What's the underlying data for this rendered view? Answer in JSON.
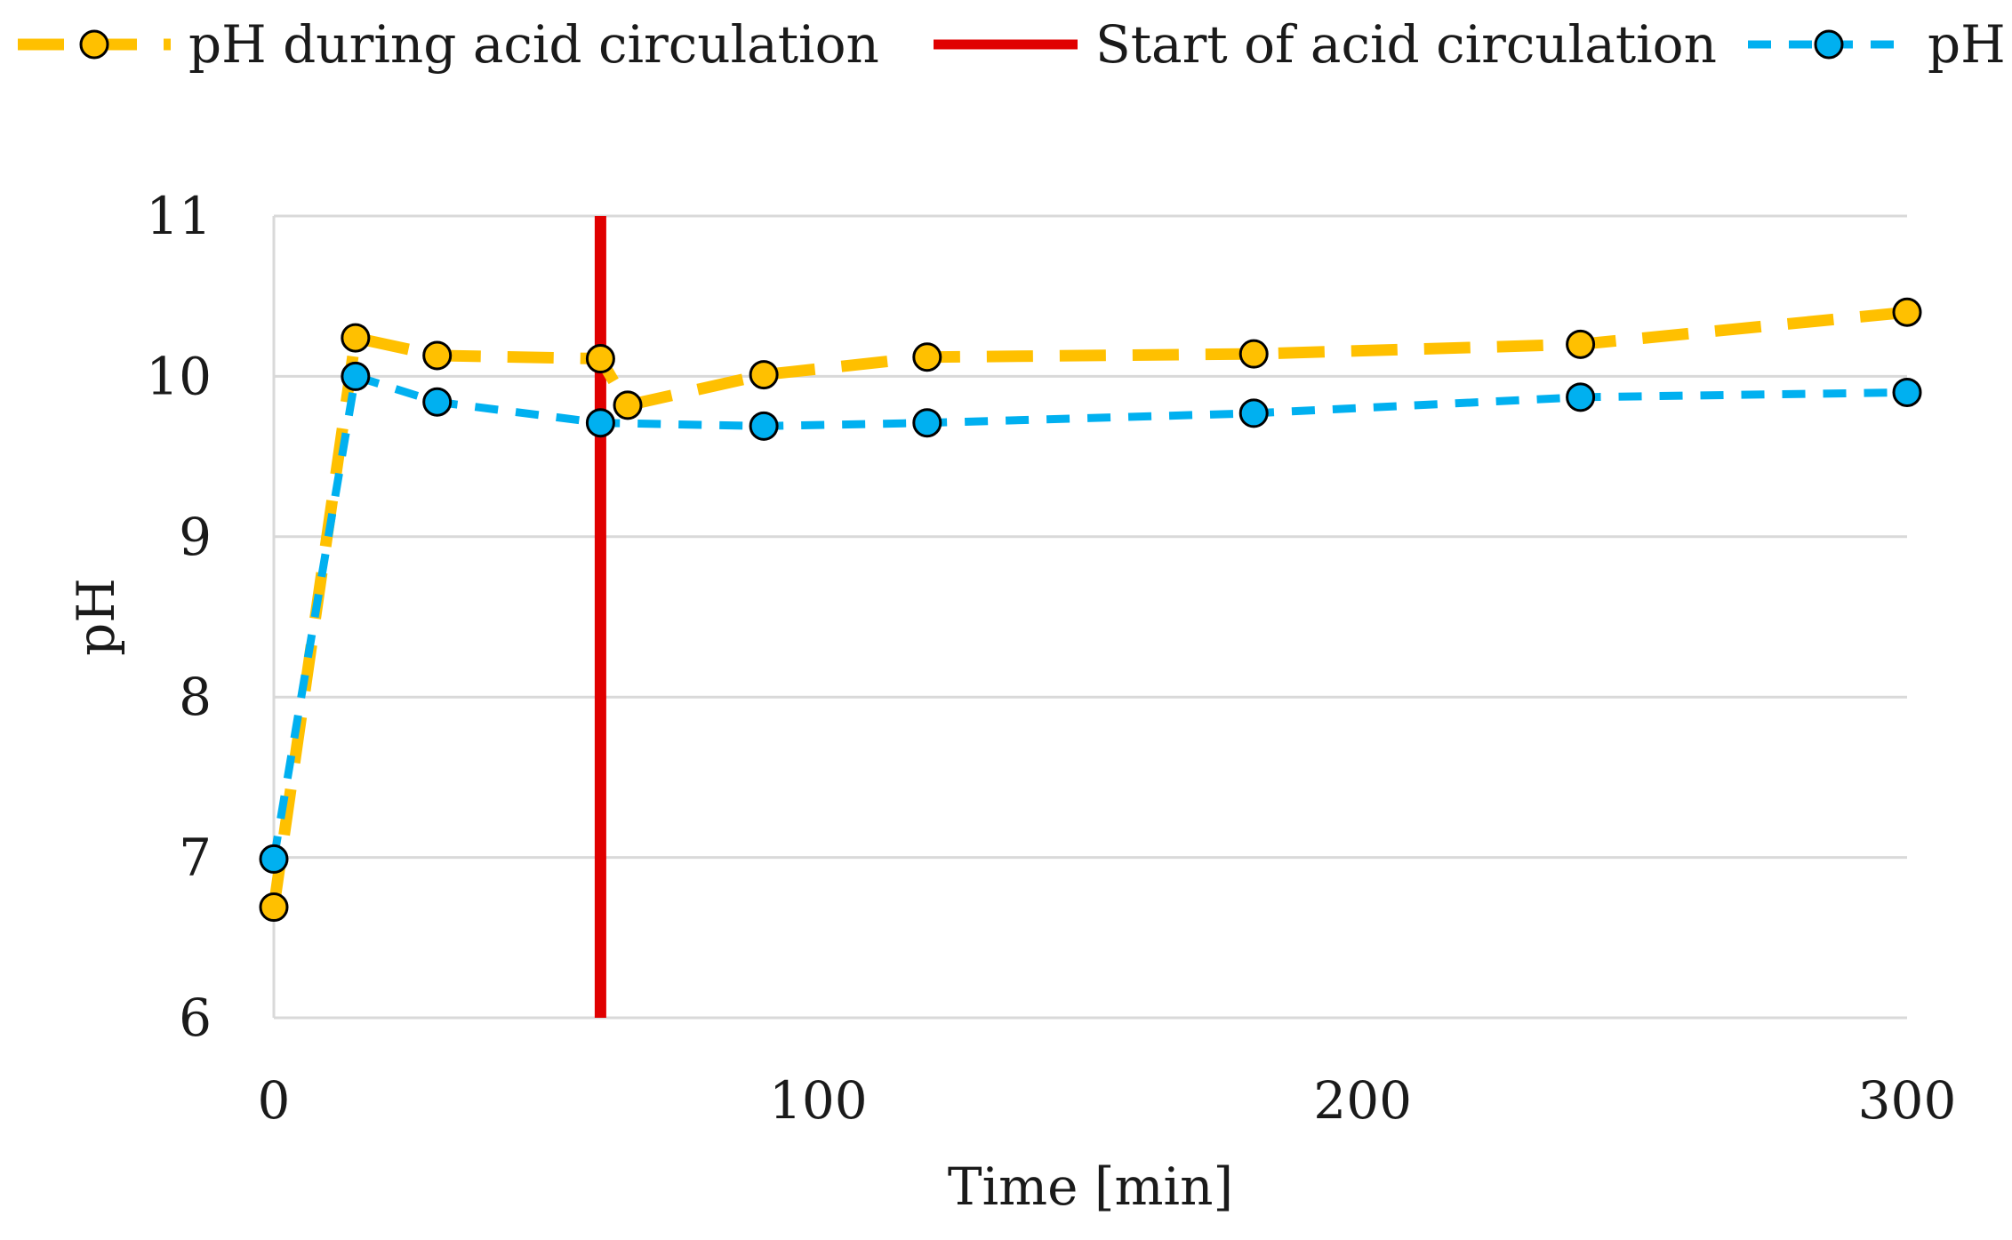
{
  "chart_data": {
    "type": "line",
    "title": "",
    "xlabel": "Time [min]",
    "ylabel": "pH",
    "xlim": [
      0,
      300
    ],
    "ylim": [
      6,
      11
    ],
    "x_ticks": [
      0,
      100,
      200,
      300
    ],
    "y_ticks": [
      6,
      7,
      8,
      9,
      10,
      11
    ],
    "grid": "horizontal",
    "legend_position": "top",
    "series": [
      {
        "name": "pH during acid circulation",
        "color": "#FFC000",
        "line_style": "long-dash",
        "marker": "circle",
        "x": [
          0,
          15,
          30,
          60,
          65,
          90,
          120,
          180,
          240,
          300
        ],
        "y": [
          6.69,
          10.24,
          10.13,
          10.11,
          9.82,
          10.01,
          10.12,
          10.14,
          10.2,
          10.4
        ]
      },
      {
        "name": "pH",
        "color": "#00B0F0",
        "line_style": "short-dash",
        "marker": "circle",
        "x": [
          0,
          15,
          30,
          60,
          90,
          120,
          180,
          240,
          300
        ],
        "y": [
          6.99,
          10.0,
          9.84,
          9.71,
          9.69,
          9.71,
          9.77,
          9.87,
          9.9
        ]
      }
    ],
    "vertical_lines": [
      {
        "name": "Start of acid circulation",
        "x": 60,
        "color": "#E00000"
      }
    ]
  }
}
